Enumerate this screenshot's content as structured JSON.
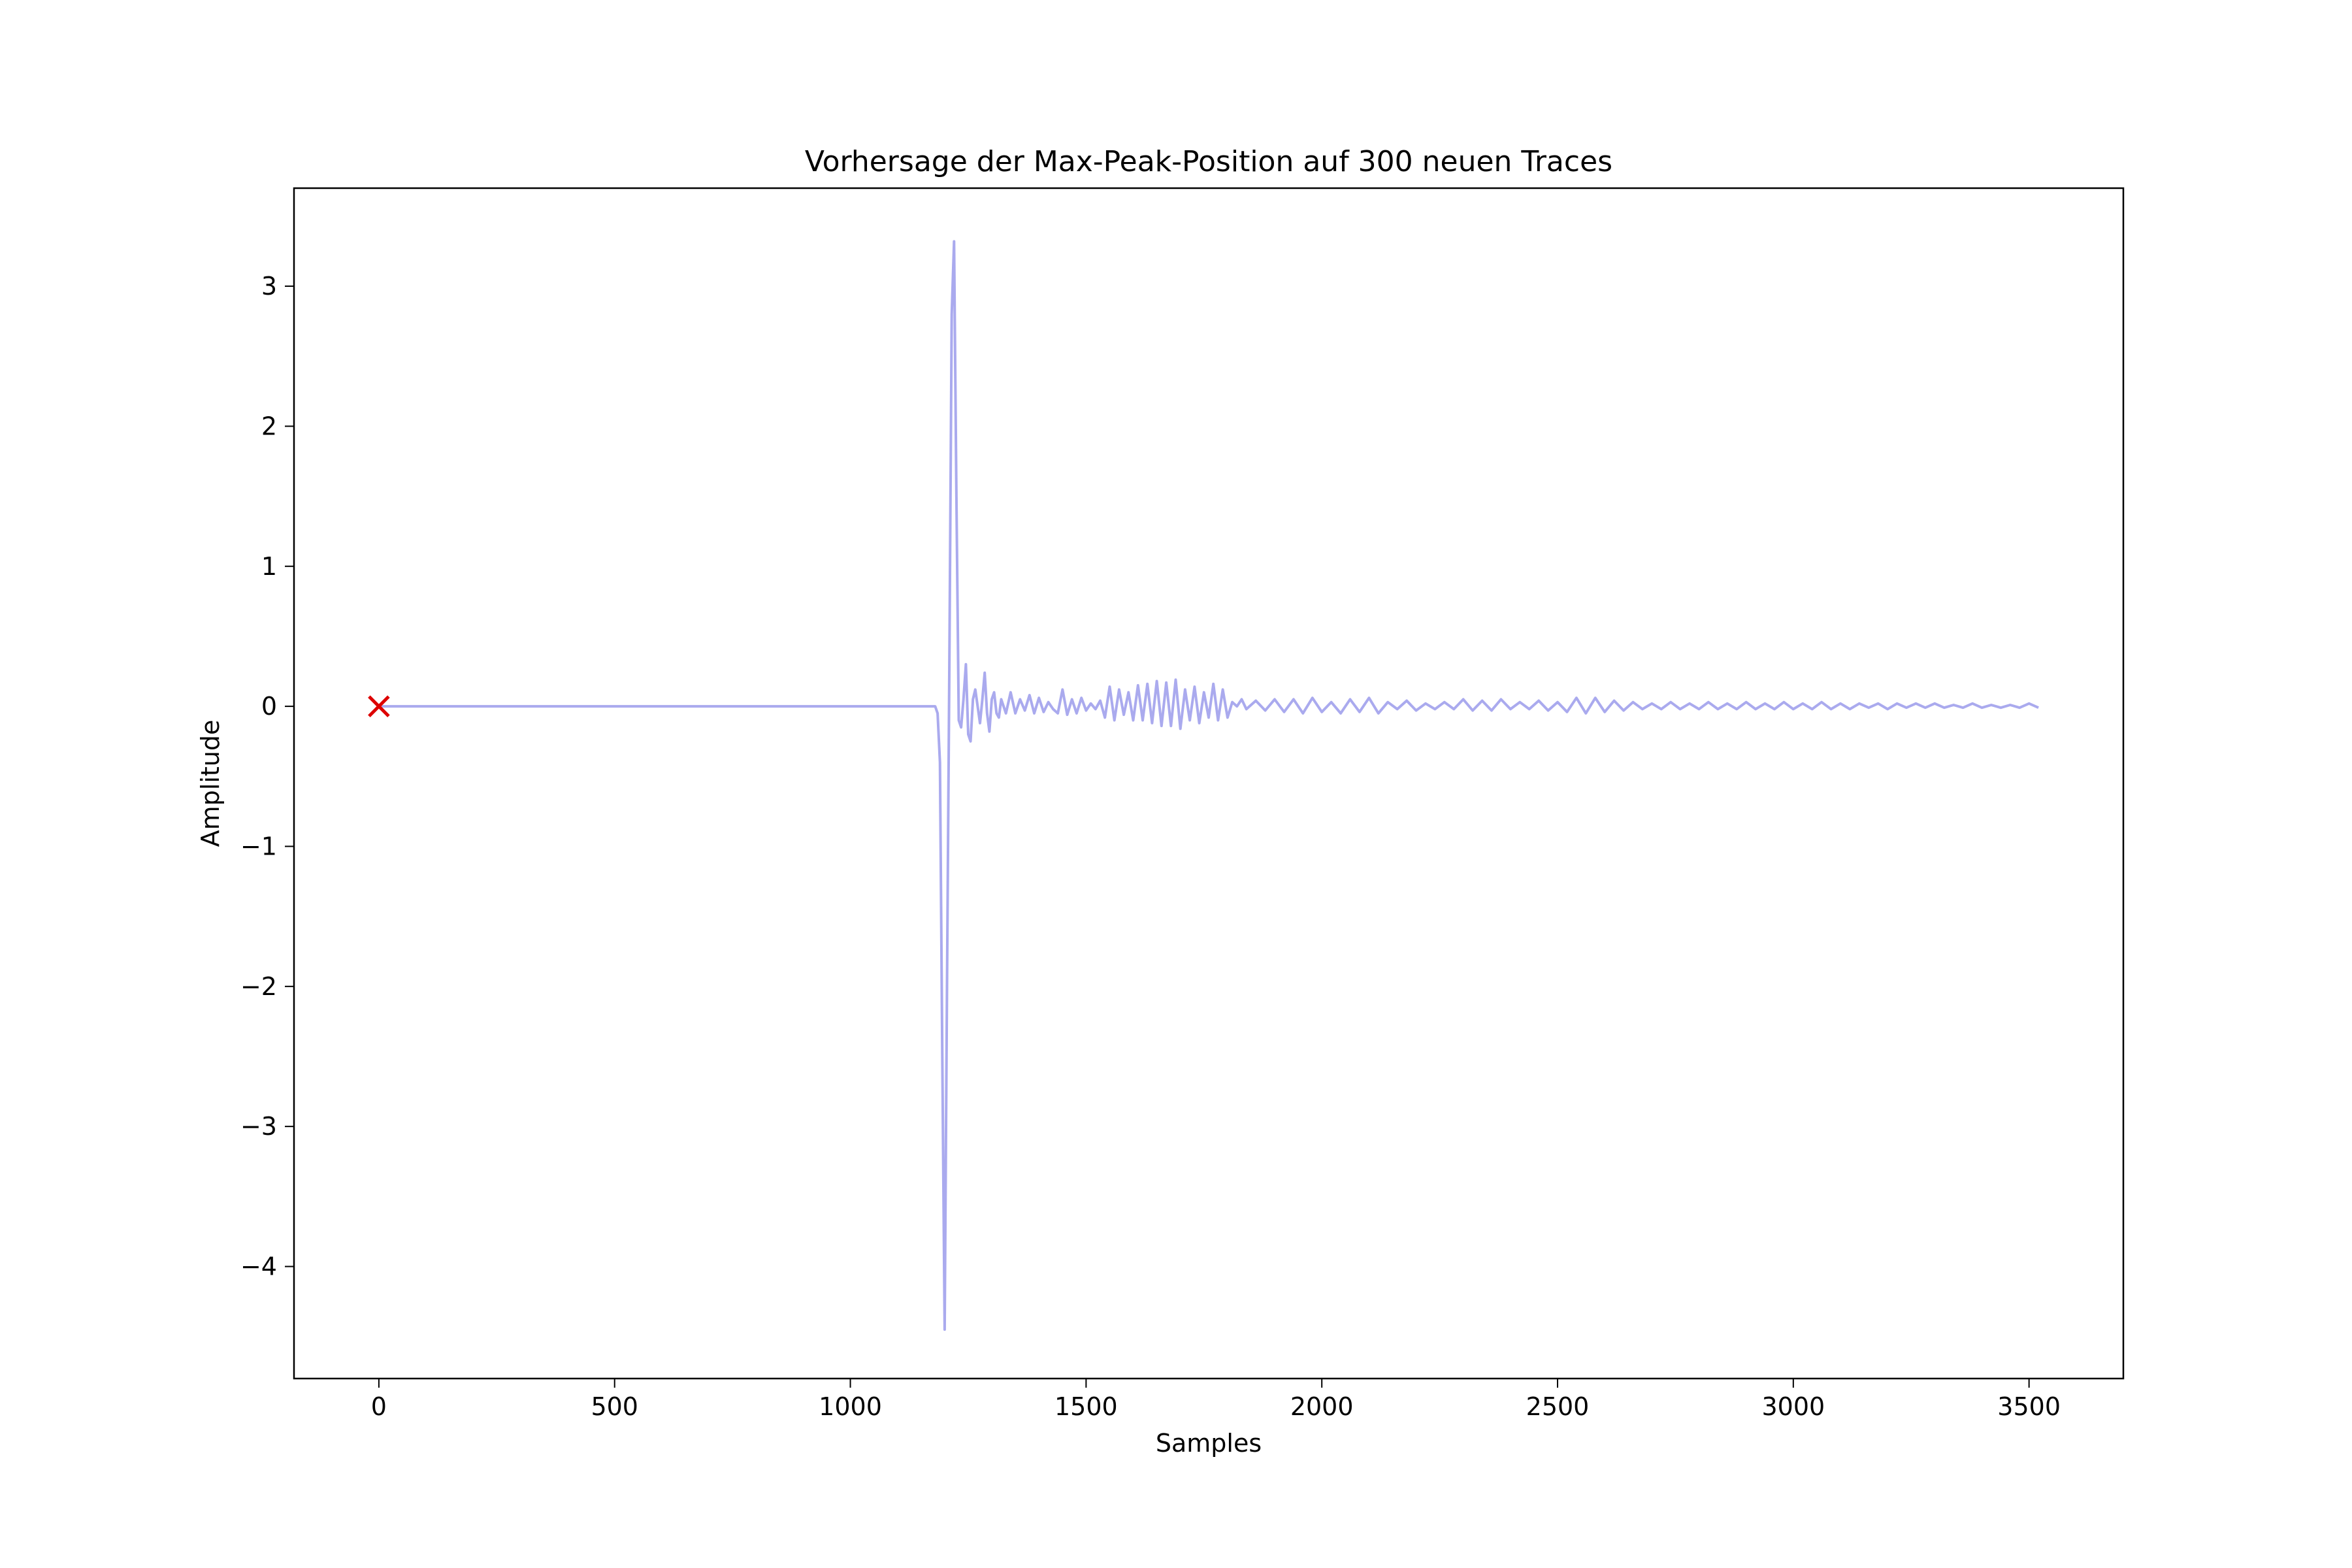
{
  "chart_data": {
    "type": "line",
    "title": "Vorhersage der Max-Peak-Position auf 300 neuen Traces",
    "xlabel": "Samples",
    "ylabel": "Amplitude",
    "xlim": [
      -180,
      3700
    ],
    "ylim": [
      -4.8,
      3.7
    ],
    "xticks": [
      0,
      500,
      1000,
      1500,
      2000,
      2500,
      3000,
      3500
    ],
    "yticks": [
      -4,
      -3,
      -2,
      -1,
      0,
      1,
      2,
      3
    ],
    "grid": false,
    "legend": "none",
    "series": [
      {
        "color": "#aaaaee",
        "x": [
          0,
          1180,
          1185,
          1190,
          1195,
          1200,
          1205,
          1210,
          1215,
          1220,
          1225,
          1230,
          1235,
          1240,
          1245,
          1250,
          1255,
          1260,
          1265,
          1270,
          1275,
          1280,
          1285,
          1290,
          1295,
          1300,
          1305,
          1310,
          1315,
          1320,
          1330,
          1340,
          1350,
          1360,
          1370,
          1380,
          1390,
          1400,
          1410,
          1420,
          1430,
          1440,
          1450,
          1460,
          1470,
          1480,
          1490,
          1500,
          1510,
          1520,
          1530,
          1540,
          1550,
          1560,
          1570,
          1580,
          1590,
          1600,
          1610,
          1620,
          1630,
          1640,
          1650,
          1660,
          1670,
          1680,
          1690,
          1700,
          1710,
          1720,
          1730,
          1740,
          1750,
          1760,
          1770,
          1780,
          1790,
          1800,
          1810,
          1820,
          1830,
          1840,
          1860,
          1880,
          1900,
          1920,
          1940,
          1960,
          1980,
          2000,
          2020,
          2040,
          2060,
          2080,
          2100,
          2120,
          2140,
          2160,
          2180,
          2200,
          2220,
          2240,
          2260,
          2280,
          2300,
          2320,
          2340,
          2360,
          2380,
          2400,
          2420,
          2440,
          2460,
          2480,
          2500,
          2520,
          2540,
          2560,
          2580,
          2600,
          2620,
          2640,
          2660,
          2680,
          2700,
          2720,
          2740,
          2760,
          2780,
          2800,
          2820,
          2840,
          2860,
          2880,
          2900,
          2920,
          2940,
          2960,
          2980,
          3000,
          3020,
          3040,
          3060,
          3080,
          3100,
          3120,
          3140,
          3160,
          3180,
          3200,
          3220,
          3240,
          3260,
          3280,
          3300,
          3320,
          3340,
          3360,
          3380,
          3400,
          3420,
          3440,
          3460,
          3480,
          3500,
          3520
        ],
        "y": [
          0,
          0,
          -0.05,
          -0.4,
          -2.5,
          -4.45,
          -2.0,
          0.3,
          2.8,
          3.32,
          1.5,
          -0.1,
          -0.15,
          0.05,
          0.3,
          -0.2,
          -0.25,
          0.05,
          0.12,
          0.0,
          -0.12,
          0.05,
          0.24,
          -0.05,
          -0.18,
          0.05,
          0.1,
          -0.05,
          -0.08,
          0.05,
          -0.05,
          0.1,
          -0.05,
          0.05,
          -0.03,
          0.08,
          -0.05,
          0.06,
          -0.04,
          0.03,
          -0.02,
          -0.05,
          0.12,
          -0.06,
          0.05,
          -0.05,
          0.06,
          -0.03,
          0.02,
          -0.02,
          0.04,
          -0.08,
          0.14,
          -0.1,
          0.12,
          -0.06,
          0.1,
          -0.1,
          0.15,
          -0.1,
          0.16,
          -0.12,
          0.18,
          -0.14,
          0.17,
          -0.14,
          0.19,
          -0.16,
          0.12,
          -0.1,
          0.14,
          -0.12,
          0.1,
          -0.08,
          0.16,
          -0.1,
          0.12,
          -0.08,
          0.03,
          0.0,
          0.05,
          -0.02,
          0.04,
          -0.03,
          0.05,
          -0.04,
          0.05,
          -0.05,
          0.06,
          -0.04,
          0.03,
          -0.05,
          0.05,
          -0.04,
          0.06,
          -0.05,
          0.03,
          -0.02,
          0.04,
          -0.03,
          0.02,
          -0.02,
          0.03,
          -0.02,
          0.05,
          -0.03,
          0.04,
          -0.03,
          0.05,
          -0.02,
          0.03,
          -0.02,
          0.04,
          -0.03,
          0.03,
          -0.04,
          0.06,
          -0.05,
          0.06,
          -0.04,
          0.04,
          -0.03,
          0.03,
          -0.02,
          0.02,
          -0.02,
          0.03,
          -0.02,
          0.02,
          -0.02,
          0.03,
          -0.02,
          0.02,
          -0.02,
          0.03,
          -0.02,
          0.02,
          -0.02,
          0.03,
          -0.02,
          0.02,
          -0.02,
          0.03,
          -0.02,
          0.02,
          -0.02,
          0.02,
          -0.01,
          0.02,
          -0.02,
          0.02,
          -0.01,
          0.02,
          -0.01,
          0.02,
          -0.01,
          0.01,
          -0.01,
          0.02,
          -0.01,
          0.01,
          -0.01,
          0.01,
          -0.01,
          0.02,
          -0.01
        ]
      },
      {
        "type": "scatter",
        "marker": "x",
        "color": "#dd0000",
        "x": [
          0
        ],
        "y": [
          0
        ]
      }
    ]
  }
}
